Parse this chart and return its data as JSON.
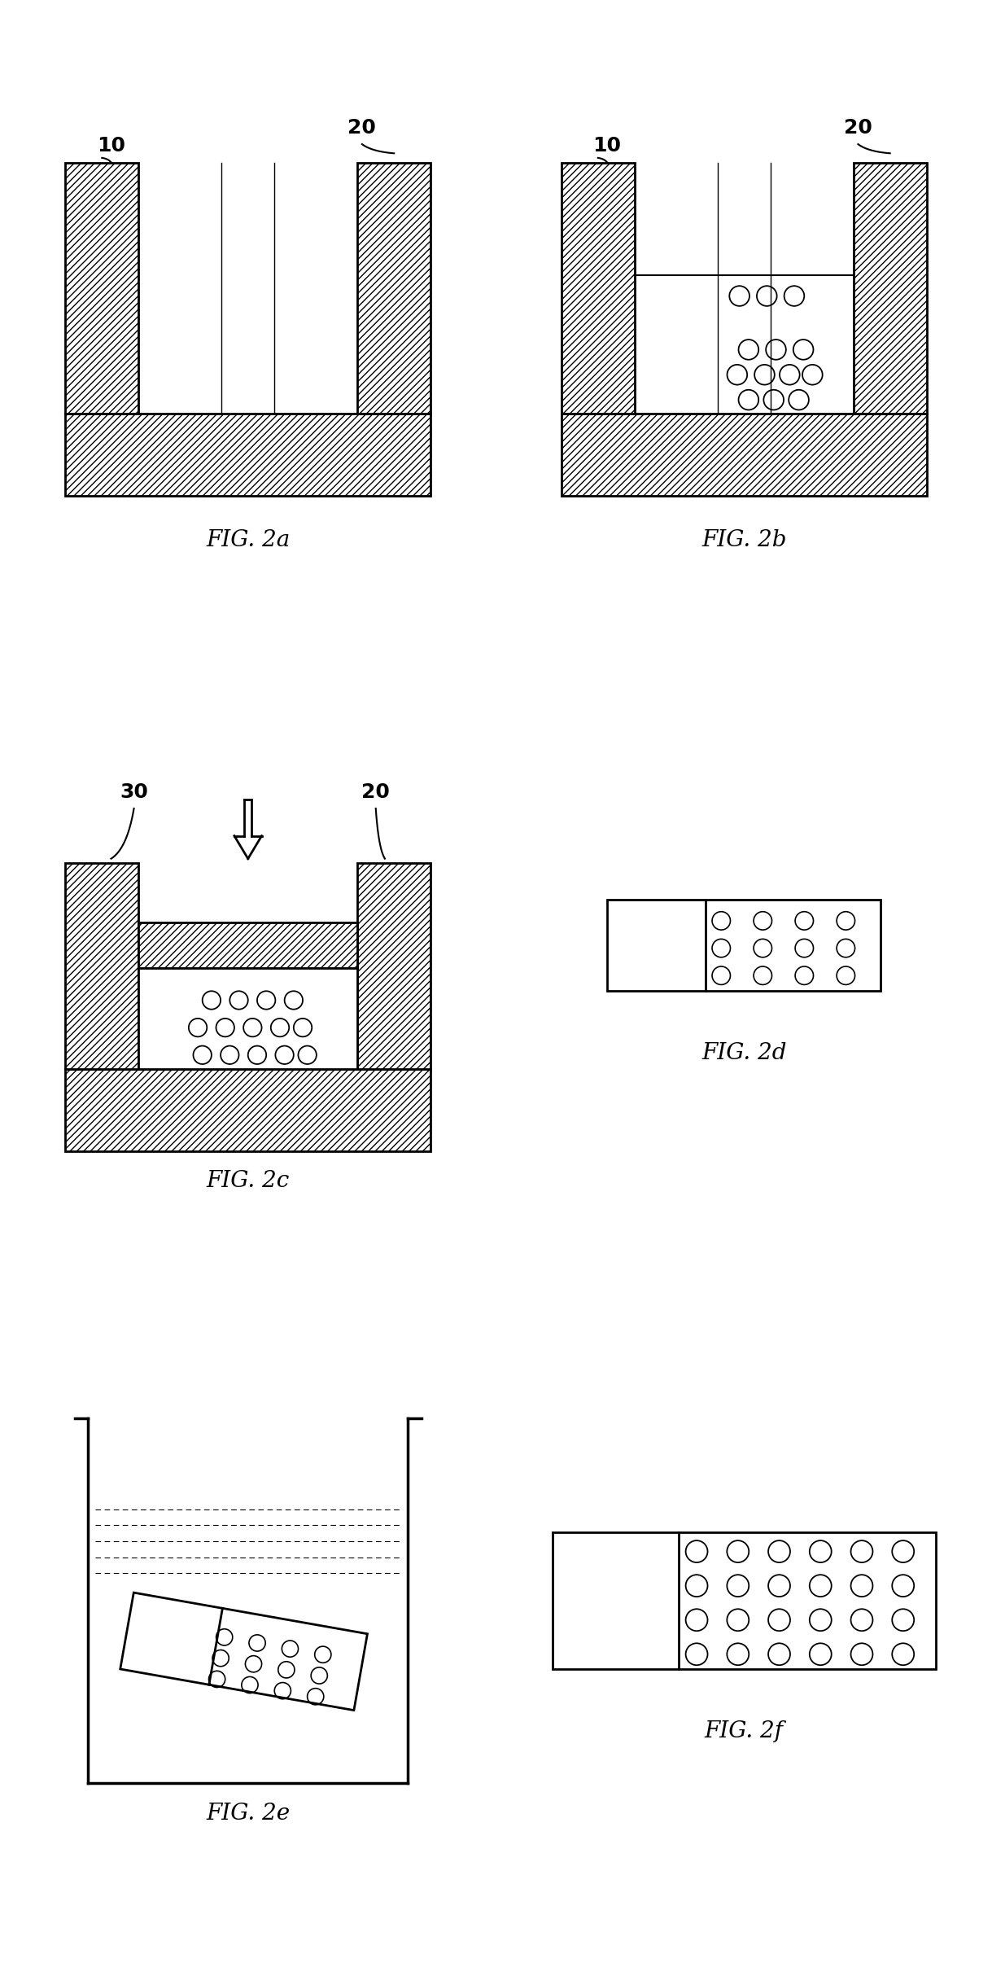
{
  "fig_labels": [
    "FIG. 2a",
    "FIG. 2b",
    "FIG. 2c",
    "FIG. 2d",
    "FIG. 2e",
    "FIG. 2f"
  ],
  "label_10": "10",
  "label_20": "20",
  "label_30": "30",
  "bg_color": "#ffffff",
  "line_color": "#000000",
  "label_fontsize": 18,
  "fig_label_fontsize": 20,
  "lw": 2.0,
  "hatch_density": "////"
}
